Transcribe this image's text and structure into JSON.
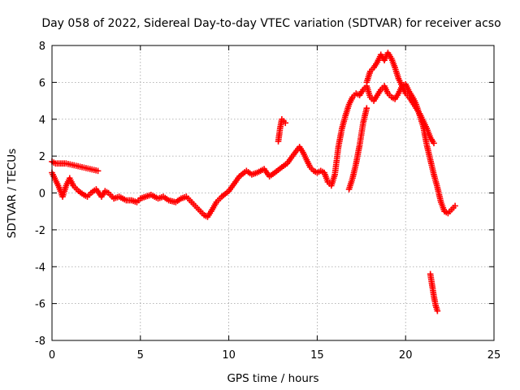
{
  "chart_data": {
    "type": "scatter",
    "title": "Day 058 of 2022, Sidereal Day-to-day VTEC variation (SDTVAR) for receiver acso",
    "xlabel": "GPS time / hours",
    "ylabel": "SDTVAR / TECUs",
    "xlim": [
      0,
      25
    ],
    "ylim": [
      -8,
      8
    ],
    "x_ticks": [
      0,
      5,
      10,
      15,
      20,
      25
    ],
    "y_ticks": [
      -8,
      -6,
      -4,
      -2,
      0,
      2,
      4,
      6,
      8
    ],
    "x_tick_labels": [
      "0",
      "5",
      "10",
      "15",
      "20",
      "25"
    ],
    "y_tick_labels": [
      "-8",
      "-6",
      "-4",
      "-2",
      "0",
      "2",
      "4",
      "6",
      "8"
    ],
    "grid": true,
    "legend": "none",
    "marker": "plus",
    "color": "#ff0000",
    "series": [
      {
        "name": "main",
        "x": [
          0.0,
          0.2,
          0.4,
          0.6,
          0.8,
          1.0,
          1.2,
          1.5,
          1.8,
          2.0,
          2.2,
          2.5,
          2.8,
          3.0,
          3.2,
          3.5,
          3.8,
          4.0,
          4.2,
          4.5,
          4.8,
          5.0,
          5.3,
          5.6,
          6.0,
          6.3,
          6.6,
          7.0,
          7.3,
          7.6,
          8.0,
          8.3,
          8.6,
          8.8,
          9.0,
          9.3,
          9.6,
          10.0,
          10.3,
          10.6,
          11.0,
          11.3,
          11.6,
          12.0,
          12.3,
          12.6,
          13.0,
          13.3,
          13.6,
          14.0,
          14.2,
          14.4,
          14.6,
          14.8,
          15.0,
          15.2,
          15.4,
          15.6,
          15.8,
          16.0,
          16.2,
          16.4,
          16.6,
          16.8,
          17.0,
          17.2,
          17.4,
          17.6,
          17.8,
          18.0,
          18.2,
          18.4,
          18.6,
          18.8,
          19.0,
          19.2,
          19.4,
          19.6,
          19.8,
          20.0,
          20.2,
          20.4,
          20.6,
          20.8,
          21.0,
          21.2,
          21.4,
          21.6,
          21.8,
          22.0,
          22.2,
          22.4,
          22.6,
          22.8
        ],
        "y": [
          1.1,
          0.7,
          0.3,
          -0.2,
          0.4,
          0.8,
          0.4,
          0.1,
          -0.1,
          -0.2,
          0.0,
          0.2,
          -0.2,
          0.1,
          0.0,
          -0.3,
          -0.2,
          -0.3,
          -0.4,
          -0.4,
          -0.5,
          -0.3,
          -0.2,
          -0.1,
          -0.3,
          -0.2,
          -0.4,
          -0.5,
          -0.3,
          -0.2,
          -0.6,
          -0.9,
          -1.2,
          -1.3,
          -1.0,
          -0.5,
          -0.2,
          0.1,
          0.5,
          0.9,
          1.2,
          1.0,
          1.1,
          1.3,
          0.9,
          1.1,
          1.4,
          1.6,
          2.0,
          2.5,
          2.2,
          1.8,
          1.4,
          1.2,
          1.1,
          1.2,
          1.1,
          0.6,
          0.4,
          1.0,
          2.5,
          3.5,
          4.2,
          4.8,
          5.2,
          5.4,
          5.3,
          5.6,
          5.8,
          5.2,
          5.0,
          5.3,
          5.6,
          5.8,
          5.4,
          5.2,
          5.1,
          5.4,
          5.8,
          5.9,
          5.5,
          5.2,
          4.8,
          4.2,
          3.6,
          2.6,
          1.8,
          1.0,
          0.3,
          -0.5,
          -1.0,
          -1.1,
          -0.9,
          -0.7
        ]
      },
      {
        "name": "upper-branch",
        "x": [
          17.8,
          18.0,
          18.2,
          18.4,
          18.6,
          18.8,
          19.0,
          19.2,
          19.4,
          19.6,
          19.8,
          20.0,
          20.2,
          20.4,
          20.6,
          20.8,
          21.0,
          21.2,
          21.4,
          21.6
        ],
        "y": [
          6.0,
          6.6,
          6.8,
          7.1,
          7.5,
          7.2,
          7.6,
          7.3,
          6.8,
          6.2,
          5.8,
          5.4,
          5.2,
          4.9,
          4.6,
          4.3,
          3.9,
          3.5,
          3.0,
          2.7
        ]
      },
      {
        "name": "dips",
        "x": [
          16.8,
          17.0,
          17.2,
          17.4,
          17.6,
          17.8
        ],
        "y": [
          0.2,
          0.8,
          1.6,
          2.6,
          3.8,
          4.6
        ]
      },
      {
        "name": "isolated-1",
        "x": [
          0.0,
          0.2,
          0.4,
          0.6,
          0.8,
          2.6
        ],
        "y": [
          1.7,
          1.6,
          1.6,
          1.6,
          1.6,
          1.2
        ]
      },
      {
        "name": "isolated-2",
        "x": [
          12.8,
          12.9,
          13.0,
          13.1,
          13.2
        ],
        "y": [
          2.8,
          3.5,
          4.0,
          3.9,
          3.8
        ]
      },
      {
        "name": "isolated-3",
        "x": [
          21.4,
          21.5,
          21.6,
          21.7,
          21.8
        ],
        "y": [
          -4.4,
          -5.0,
          -5.6,
          -6.1,
          -6.4
        ]
      }
    ]
  }
}
